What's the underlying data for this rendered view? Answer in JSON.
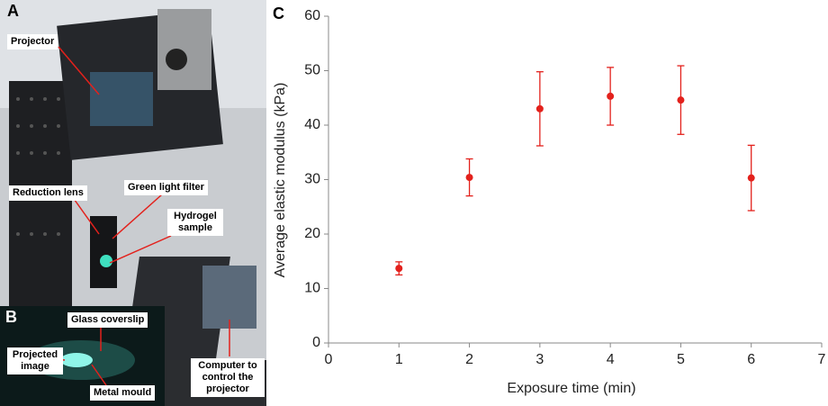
{
  "figure": {
    "panel_labels": [
      "A",
      "B",
      "C"
    ],
    "annotations": [
      "Projector",
      "Reduction lens",
      "Green light filter",
      "Hydrogel sample",
      "Glass coverslip",
      "Projected image",
      "Metal mould",
      "Computer to control the projector"
    ]
  },
  "chart_data": {
    "type": "scatter",
    "xlabel": "Exposure time (min)",
    "ylabel": "Average elastic modulus (kPa)",
    "x": [
      1,
      2,
      3,
      4,
      5,
      6
    ],
    "values": [
      13.7,
      30.4,
      43.0,
      45.3,
      44.6,
      30.3
    ],
    "errors": [
      1.2,
      3.4,
      6.8,
      5.3,
      6.3,
      6.0
    ],
    "color": "#e3211c",
    "xlim": [
      0,
      7
    ],
    "xticks": [
      0,
      1,
      2,
      3,
      4,
      5,
      6,
      7
    ],
    "ylim": [
      0,
      60
    ],
    "yticks": [
      0,
      10,
      20,
      30,
      40,
      50,
      60
    ]
  }
}
